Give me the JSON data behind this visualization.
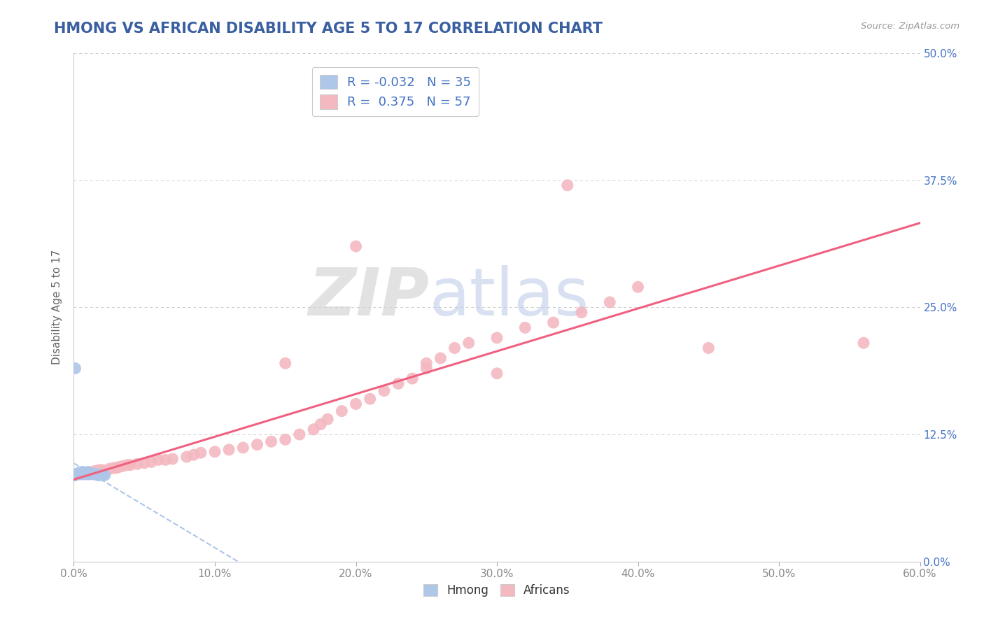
{
  "title": "HMONG VS AFRICAN DISABILITY AGE 5 TO 17 CORRELATION CHART",
  "source": "Source: ZipAtlas.com",
  "ylabel": "Disability Age 5 to 17",
  "xlim": [
    0.0,
    0.6
  ],
  "ylim": [
    0.0,
    0.5
  ],
  "xtick_values": [
    0.0,
    0.1,
    0.2,
    0.3,
    0.4,
    0.5,
    0.6
  ],
  "xtick_labels": [
    "0.0%",
    "10.0%",
    "20.0%",
    "30.0%",
    "40.0%",
    "50.0%",
    "60.0%"
  ],
  "ytick_values": [
    0.0,
    0.125,
    0.25,
    0.375,
    0.5
  ],
  "ytick_right_labels": [
    "0.0%",
    "12.5%",
    "25.0%",
    "37.5%",
    "50.0%"
  ],
  "hmong_R": -0.032,
  "hmong_N": 35,
  "african_R": 0.375,
  "african_N": 57,
  "hmong_color": "#aec6e8",
  "african_color": "#f4b8c1",
  "hmong_line_color": "#aec6e8",
  "african_line_color": "#f06080",
  "hmong_x": [
    0.0,
    0.001,
    0.002,
    0.003,
    0.003,
    0.004,
    0.004,
    0.005,
    0.005,
    0.005,
    0.006,
    0.006,
    0.007,
    0.007,
    0.007,
    0.008,
    0.008,
    0.009,
    0.009,
    0.01,
    0.01,
    0.01,
    0.011,
    0.011,
    0.012,
    0.012,
    0.013,
    0.014,
    0.015,
    0.016,
    0.017,
    0.018,
    0.02,
    0.022,
    0.001
  ],
  "hmong_y": [
    0.085,
    0.085,
    0.086,
    0.086,
    0.087,
    0.086,
    0.087,
    0.086,
    0.087,
    0.088,
    0.086,
    0.088,
    0.086,
    0.087,
    0.088,
    0.086,
    0.087,
    0.086,
    0.087,
    0.086,
    0.087,
    0.088,
    0.086,
    0.087,
    0.086,
    0.087,
    0.086,
    0.086,
    0.086,
    0.086,
    0.085,
    0.085,
    0.085,
    0.085,
    0.19
  ],
  "african_x": [
    0.001,
    0.005,
    0.008,
    0.01,
    0.012,
    0.015,
    0.018,
    0.02,
    0.025,
    0.028,
    0.03,
    0.032,
    0.035,
    0.038,
    0.04,
    0.045,
    0.05,
    0.055,
    0.06,
    0.065,
    0.07,
    0.08,
    0.085,
    0.09,
    0.1,
    0.11,
    0.12,
    0.13,
    0.14,
    0.15,
    0.16,
    0.17,
    0.175,
    0.18,
    0.19,
    0.2,
    0.21,
    0.22,
    0.23,
    0.24,
    0.25,
    0.26,
    0.27,
    0.28,
    0.3,
    0.32,
    0.34,
    0.36,
    0.38,
    0.4,
    0.2,
    0.3,
    0.35,
    0.25,
    0.15,
    0.45,
    0.56
  ],
  "african_y": [
    0.085,
    0.086,
    0.087,
    0.088,
    0.088,
    0.089,
    0.09,
    0.09,
    0.091,
    0.092,
    0.092,
    0.093,
    0.094,
    0.095,
    0.095,
    0.096,
    0.097,
    0.098,
    0.1,
    0.1,
    0.101,
    0.103,
    0.105,
    0.107,
    0.108,
    0.11,
    0.112,
    0.115,
    0.118,
    0.12,
    0.125,
    0.13,
    0.135,
    0.14,
    0.148,
    0.155,
    0.16,
    0.168,
    0.175,
    0.18,
    0.19,
    0.2,
    0.21,
    0.215,
    0.22,
    0.23,
    0.235,
    0.245,
    0.255,
    0.27,
    0.31,
    0.185,
    0.37,
    0.195,
    0.195,
    0.21,
    0.215
  ],
  "watermark_zip": "ZIP",
  "watermark_atlas": "atlas",
  "background_color": "#ffffff",
  "grid_color": "#cccccc",
  "title_color": "#3a5fa0",
  "axis_label_color": "#666666",
  "tick_color": "#888888",
  "right_tick_color": "#4472c4"
}
